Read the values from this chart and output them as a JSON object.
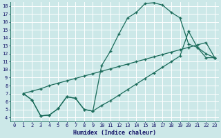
{
  "xlabel": "Humidex (Indice chaleur)",
  "bg_color": "#cce8e8",
  "grid_color": "#ffffff",
  "line_color": "#1a6b5a",
  "xlim": [
    -0.5,
    23.5
  ],
  "ylim": [
    3.5,
    18.5
  ],
  "xticks": [
    0,
    1,
    2,
    3,
    4,
    5,
    6,
    7,
    8,
    9,
    10,
    11,
    12,
    13,
    14,
    15,
    16,
    17,
    18,
    19,
    20,
    21,
    22,
    23
  ],
  "yticks": [
    4,
    5,
    6,
    7,
    8,
    9,
    10,
    11,
    12,
    13,
    14,
    15,
    16,
    17,
    18
  ],
  "line1_x": [
    1,
    2,
    3,
    4,
    5,
    6,
    7,
    8,
    9,
    10,
    11,
    12,
    13,
    14,
    15,
    16,
    17,
    18,
    19,
    20,
    21,
    22,
    23
  ],
  "line1_y": [
    7.0,
    6.2,
    4.2,
    4.3,
    5.1,
    6.6,
    6.4,
    5.0,
    4.8,
    10.5,
    12.3,
    14.5,
    16.5,
    17.2,
    18.3,
    18.4,
    18.1,
    17.2,
    16.5,
    13.2,
    12.8,
    11.5,
    11.5
  ],
  "line2_x": [
    1,
    2,
    3,
    4,
    5,
    6,
    7,
    8,
    9,
    10,
    11,
    12,
    13,
    14,
    15,
    16,
    17,
    18,
    19,
    20,
    21,
    22,
    23
  ],
  "line2_y": [
    7.0,
    7.3,
    7.6,
    8.0,
    8.3,
    8.6,
    8.9,
    9.2,
    9.5,
    9.8,
    10.1,
    10.4,
    10.7,
    11.0,
    11.3,
    11.6,
    11.9,
    12.2,
    12.5,
    12.8,
    13.1,
    13.4,
    11.5
  ],
  "line3_x": [
    1,
    2,
    3,
    4,
    5,
    6,
    7,
    8,
    9,
    10,
    11,
    12,
    13,
    14,
    15,
    16,
    17,
    18,
    19,
    20,
    21,
    22,
    23
  ],
  "line3_y": [
    7.0,
    6.2,
    4.2,
    4.3,
    5.1,
    6.6,
    6.4,
    5.0,
    4.8,
    5.5,
    6.1,
    6.8,
    7.5,
    8.2,
    8.9,
    9.6,
    10.3,
    11.0,
    11.7,
    14.8,
    12.8,
    12.0,
    11.5
  ]
}
